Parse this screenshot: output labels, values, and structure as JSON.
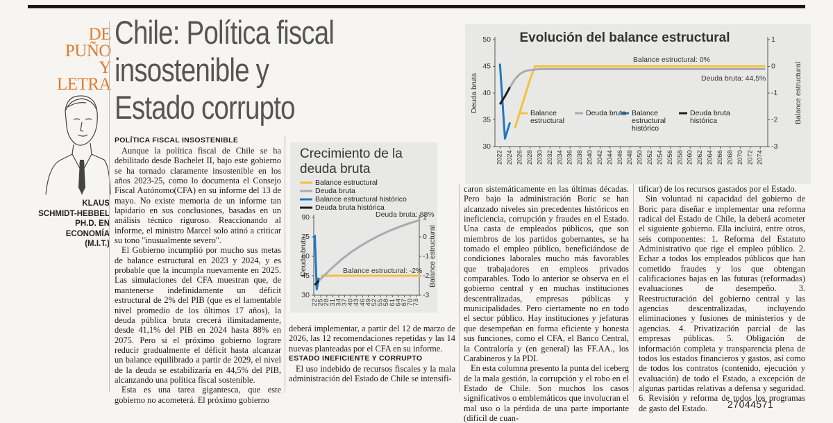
{
  "header": {
    "section_lines": [
      "DE",
      "PUÑO",
      "Y LETRA"
    ],
    "title_lines": [
      "Chile: Política fiscal",
      "insostenible y",
      "Estado corrupto"
    ],
    "author_lines": [
      "KLAUS",
      "SCHMIDT-HEBBEL",
      "PH.D. EN",
      "ECONOMÍA",
      "(M.I.T.)"
    ]
  },
  "article": {
    "columns": [
      [
        {
          "heading": "POLÍTICA FISCAL INSOSTENIBLE"
        },
        {
          "paragraph": "Aunque la política fiscal de Chile se ha debilitado desde Bachelet II, bajo este gobierno se ha tornado claramente insostenible en los años 2023-25, como lo documenta el Consejo Fiscal Autónomo(CFA) en su informe del 13 de mayo. No existe memoria de un informe tan lapidario en sus conclusiones, basadas en un análisis técnico riguroso. Reaccionando al informe, el ministro Marcel solo atinó a criticar su tono \"inusualmente severo\"."
        },
        {
          "paragraph": "El Gobierno incumplió por mucho sus metas de balance estructural en 2023 y 2024, y es probable que la incumpla nuevamente en 2025. Las simulaciones del CFA muestran que, de mantenerse indefinidamente un déficit estructural de 2% del PIB (que es el lamentable nivel promedio de los últimos 17 años), la deuda pública bruta crecerá ilimitadamente, desde 41,1% del PIB en 2024 hasta 88% en 2075. Pero si el próximo gobierno lograre reducir gradualmente el déficit hasta alcanzar un balance equilibrado a partir de 2029, el nivel de la deuda se estabilizaría en 44,5% del PIB, alcanzando una política fiscal sostenible."
        },
        {
          "paragraph": "Esta es una tarea gigantesca, que este gobierno no acometerá. El próximo gobierno"
        }
      ],
      [
        {
          "paragraph": "deberá implementar, a partir del 12 de marzo de 2026, las 12 recomendaciones repetidas y las 14 nuevas planteadas por el CFA en su informe."
        },
        {
          "heading": "ESTADO INEFICIENTE Y CORRUPTO"
        },
        {
          "paragraph": "El uso indebido de recursos fiscales y la mala administración del Estado de Chile se intensifi-"
        }
      ],
      [
        {
          "paragraph": "caron sistemáticamente en las últimas décadas. Pero bajo la administración Boric se han alcanzado niveles sin precedentes históricos en ineficiencia, corrupción y fraudes en el Estado. Una casta de empleados públicos, que son miembros de los partidos gobernantes, se ha tomado el empleo público, beneficiándose de condiciones laborales mucho más favorables que trabajadores en empleos privados comparables. Todo lo anterior se observa en el gobierno central y en muchas instituciones descentralizadas, empresas públicas y municipalidades. Pero ciertamente no en todo el sector público. Hay instituciones y jefaturas que desempeñan en forma eficiente y honesta sus funciones, como el CFA, el Banco Central, la Contraloría y (en general) las FF.AA., los Carabineros y la PDI."
        },
        {
          "paragraph": "En esta columna presento la punta del iceberg de la mala gestión, la corrupción y el robo en el Estado de Chile. Son muchos los casos significativos o emblemáticos que involucran el mal uso o la pérdida de una parte importante (difícil de cuan-"
        }
      ],
      [
        {
          "paragraph": "tificar) de los recursos gastados por el Estado."
        },
        {
          "paragraph": "Sin voluntad ni capacidad del gobierno de Boric para diseñar e implementar una reforma radical del Estado de Chile, la deberá acometer el siguiente gobierno. Ella incluirá, entre otros, seis componentes: 1. Reforma del Estatuto Administrativo que rige el empleo público. 2. Echar a todos los empleados públicos que han cometido fraudes y los que obtengan calificaciones bajas en las futuras (reformadas) evaluaciones de desempeño. 3. Reestructuración del gobierno central y las agencias descentralizadas, incluyendo eliminaciones y fusiones de ministerios y de agencias. 4. Privatización parcial de las empresas públicas. 5. Obligación de información completa y transparencia plena de todos los estados financieros y gastos, así como de todos los contratos (contenido, ejecución y evaluación) de todo el Estado, a excepción de algunas partidas relativas a defensa y seguridad. 6. Revisión y reforma de todos los programas de gasto del Estado."
        }
      ]
    ]
  },
  "charts": [
    {
      "type": "line",
      "title": "Evolución del balance estructural",
      "ylabel": "Deuda bruta",
      "y2label": "Balance estructural",
      "xlim": [
        2021,
        2075.5
      ],
      "xticks": [
        2022,
        2024,
        2026,
        2028,
        2030,
        2032,
        2034,
        2036,
        2038,
        2040,
        2042,
        2044,
        2046,
        2048,
        2050,
        2052,
        2054,
        2056,
        2058,
        2060,
        2062,
        2064,
        2066,
        2068,
        2070,
        2072,
        2074
      ],
      "ylim": [
        30,
        50
      ],
      "yticks": [
        30,
        35,
        40,
        45,
        50
      ],
      "y2lim": [
        -3,
        1
      ],
      "y2ticks": [
        -3,
        -2,
        -1,
        0,
        1
      ],
      "annotations": [
        "Balance estructural: 0%",
        "Deuda bruta: 44,5%"
      ],
      "series": [
        {
          "name": "Balance estructural",
          "color": "#f4c23f",
          "axis": "y2",
          "x": [
            2025,
            2026,
            2027,
            2028,
            2029,
            2075
          ],
          "values": [
            -2.3,
            -1.7,
            -1.1,
            -0.5,
            0,
            0
          ]
        },
        {
          "name": "Deuda bruta",
          "color": "#a9abae",
          "axis": "y",
          "x": [
            2024,
            2025,
            2026,
            2027,
            2028,
            2029,
            2030,
            2075
          ],
          "values": [
            41.1,
            42.6,
            43.6,
            44.1,
            44.3,
            44.4,
            44.5,
            44.5
          ]
        },
        {
          "name": "Balance estructural histórico",
          "color": "#1f78c1",
          "axis": "y2",
          "x": [
            2022,
            2023,
            2024
          ],
          "values": [
            0.1,
            -2.7,
            -2.1
          ]
        },
        {
          "name": "Deuda bruta histórica",
          "color": "#1e1e1e",
          "axis": "y",
          "x": [
            2022,
            2023,
            2024
          ],
          "values": [
            37.9,
            39.4,
            41.1
          ]
        }
      ]
    },
    {
      "type": "line",
      "title": "Crecimiento de la deuda bruta",
      "ylabel": "Deuda bruta",
      "y2label": "Balance estructural",
      "xlim": [
        21.5,
        74.5
      ],
      "xticks": [
        22,
        25,
        28,
        31,
        34,
        37,
        40,
        43,
        46,
        49,
        52,
        55,
        58,
        61,
        64,
        67,
        70,
        73
      ],
      "ylim": [
        30,
        90
      ],
      "yticks": [
        30,
        45,
        60,
        75,
        90
      ],
      "y2lim": [
        -3,
        1
      ],
      "y2ticks": [
        -3,
        -2,
        -1,
        0,
        1
      ],
      "annotations": [
        "Deuda bruta: 88%",
        "Balance estructural: -2%"
      ],
      "series": [
        {
          "name": "Balance estructural",
          "color": "#f4c23f",
          "axis": "y2",
          "x": [
            25,
            75
          ],
          "values": [
            -2,
            -2
          ]
        },
        {
          "name": "Deuda bruta",
          "color": "#a9abae",
          "axis": "y",
          "x": [
            24,
            30,
            35,
            40,
            45,
            50,
            55,
            60,
            65,
            70,
            75
          ],
          "values": [
            41.1,
            50,
            57,
            63,
            68,
            72.5,
            76.5,
            80,
            83,
            85.7,
            88
          ]
        },
        {
          "name": "Balance estructural histórico",
          "color": "#1f78c1",
          "axis": "y2",
          "x": [
            22,
            23,
            24
          ],
          "values": [
            0.1,
            -2.7,
            -2.1
          ]
        },
        {
          "name": "Deuda bruta histórica",
          "color": "#1e1e1e",
          "axis": "y",
          "x": [
            22,
            23,
            24
          ],
          "values": [
            37.9,
            39.4,
            41.1
          ]
        }
      ]
    }
  ],
  "watermark": "27044571"
}
